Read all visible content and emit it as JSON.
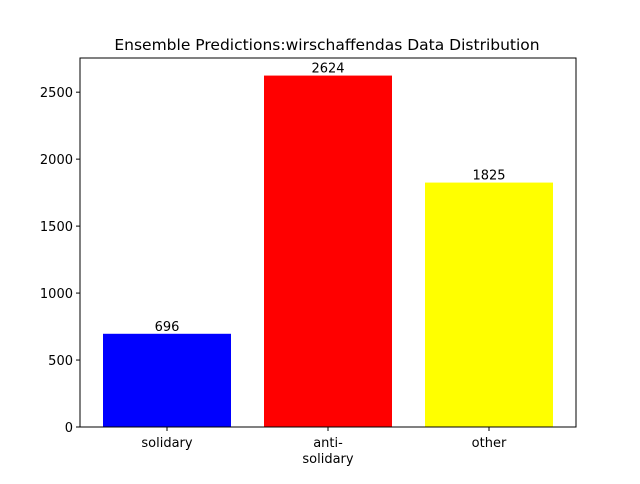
{
  "chart_data": {
    "type": "bar",
    "title": "Ensemble Predictions:wirschaffendas Data Distribution",
    "xlabel": "",
    "ylabel": "",
    "categories": [
      "solidary",
      "anti-\nsolidary",
      "other"
    ],
    "values": [
      696,
      2624,
      1825
    ],
    "colors": [
      "#0000ff",
      "#ff0000",
      "#ffff00"
    ],
    "ylim": [
      0,
      2755.2
    ],
    "yticks": [
      0,
      500,
      1000,
      1500,
      2000,
      2500
    ],
    "grid": false,
    "legend": "none"
  }
}
